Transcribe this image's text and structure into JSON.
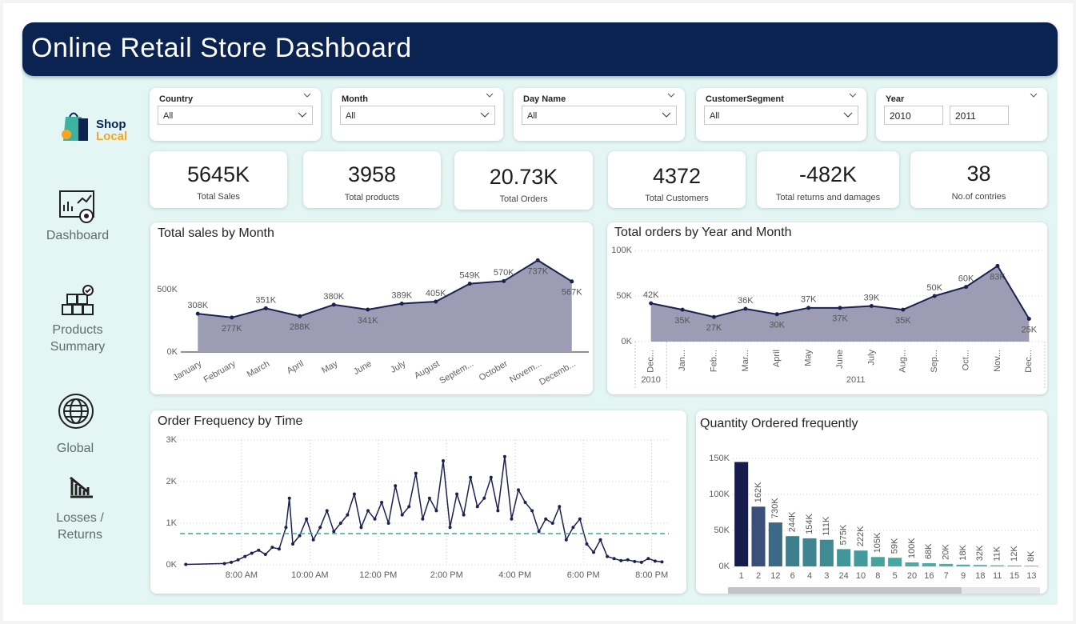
{
  "title": "Online Retail Store Dashboard",
  "logo": {
    "line1": "Shop",
    "line2": "Local"
  },
  "nav": [
    "Dashboard",
    "Products Summary",
    "Global",
    "Losses / Returns"
  ],
  "filters": [
    {
      "label": "Country",
      "value": "All"
    },
    {
      "label": "Month",
      "value": "All"
    },
    {
      "label": "Day Name",
      "value": "All"
    },
    {
      "label": "CustomerSegment",
      "value": "All"
    },
    {
      "label": "Year",
      "from": "2010",
      "to": "2011"
    }
  ],
  "kpis": [
    {
      "value": "5645K",
      "label": "Total Sales"
    },
    {
      "value": "3958",
      "label": "Total products"
    },
    {
      "value": "20.73K",
      "label": "Total Orders"
    },
    {
      "value": "4372",
      "label": "Total Customers"
    },
    {
      "value": "-482K",
      "label": "Total returns and damages"
    },
    {
      "value": "38",
      "label": "No.of contries"
    }
  ],
  "chart_data": [
    {
      "type": "area",
      "title": "Total sales by Month",
      "categories": [
        "January",
        "February",
        "March",
        "April",
        "May",
        "June",
        "July",
        "August",
        "Septem...",
        "October",
        "Novem...",
        "Decemb..."
      ],
      "values": [
        308000,
        277000,
        351000,
        288000,
        380000,
        341000,
        389000,
        405000,
        549000,
        570000,
        737000,
        567000
      ],
      "value_labels": [
        "308K",
        "277K",
        "351K",
        "288K",
        "380K",
        "341K",
        "389K",
        "405K",
        "549K",
        "570K",
        "737K",
        "567K"
      ],
      "color": "#1b2150",
      "fill": "#9c9db4",
      "ylim": [
        0,
        900000
      ],
      "yticks": [
        {
          "value": 0,
          "label": "0K"
        },
        {
          "value": 500000,
          "label": "500K"
        }
      ]
    },
    {
      "type": "area",
      "title": "Total orders by Year and Month",
      "groups": [
        {
          "name": "2010",
          "categories": [
            "Dec..."
          ]
        },
        {
          "name": "2011",
          "categories": [
            "Jan...",
            "Feb...",
            "Mar...",
            "April",
            "May",
            "June",
            "July",
            "Aug...",
            "Sep...",
            "Oct...",
            "Nov...",
            "Dec..."
          ]
        }
      ],
      "values": [
        42000,
        35000,
        27000,
        36000,
        30000,
        37000,
        37000,
        39000,
        35000,
        50000,
        60000,
        83000,
        25000
      ],
      "value_labels": [
        "42K",
        "35K",
        "27K",
        "36K",
        "30K",
        "37K",
        "37K",
        "39K",
        "35K",
        "50K",
        "60K",
        "83K",
        "25K"
      ],
      "color": "#1b2150",
      "fill": "#9c9db4",
      "ylim": [
        0,
        100000
      ],
      "yticks": [
        {
          "value": 0,
          "label": "0K"
        },
        {
          "value": 50000,
          "label": "50K"
        },
        {
          "value": 100000,
          "label": "100K"
        }
      ],
      "grid": true
    },
    {
      "type": "line",
      "title": "Order Frequency by Time",
      "x": [
        6.37,
        7.5,
        7.7,
        7.9,
        8.1,
        8.3,
        8.5,
        8.7,
        8.9,
        9.1,
        9.3,
        9.4,
        9.5,
        9.7,
        9.9,
        10.1,
        10.3,
        10.5,
        10.7,
        10.9,
        11.1,
        11.3,
        11.5,
        11.7,
        11.9,
        12.1,
        12.3,
        12.5,
        12.7,
        12.9,
        13.1,
        13.3,
        13.5,
        13.7,
        13.9,
        14.1,
        14.3,
        14.5,
        14.7,
        14.9,
        15.1,
        15.3,
        15.5,
        15.7,
        15.9,
        16.1,
        16.3,
        16.5,
        16.7,
        16.9,
        17.1,
        17.3,
        17.5,
        17.7,
        17.9,
        18.1,
        18.3,
        18.5,
        18.7,
        18.9,
        19.1,
        19.3,
        19.5,
        19.7,
        19.9,
        20.1,
        20.3
      ],
      "values": [
        10,
        30,
        60,
        120,
        200,
        280,
        350,
        250,
        420,
        380,
        900,
        1600,
        500,
        700,
        1100,
        600,
        900,
        1300,
        800,
        1000,
        1200,
        1700,
        900,
        1300,
        1100,
        1500,
        1000,
        1900,
        1200,
        1400,
        2200,
        1100,
        1600,
        1300,
        2500,
        900,
        1700,
        1200,
        2100,
        1400,
        1600,
        2100,
        1300,
        2600,
        1100,
        1800,
        1500,
        1300,
        800,
        1100,
        1000,
        1400,
        600,
        900,
        1100,
        500,
        300,
        600,
        200,
        150,
        100,
        120,
        80,
        60,
        150,
        90,
        70
      ],
      "color": "#1b2150",
      "reference_line": {
        "value": 750,
        "color": "#3aa89a"
      },
      "xlim": [
        6.2,
        20.5
      ],
      "xticks": [
        {
          "value": 8,
          "label": "8:00 AM"
        },
        {
          "value": 10,
          "label": "10:00 AM"
        },
        {
          "value": 12,
          "label": "12:00 PM"
        },
        {
          "value": 14,
          "label": "2:00 PM"
        },
        {
          "value": 16,
          "label": "4:00 PM"
        },
        {
          "value": 18,
          "label": "6:00 PM"
        },
        {
          "value": 20,
          "label": "8:00 PM"
        }
      ],
      "ylim": [
        0,
        3000
      ],
      "yticks": [
        {
          "value": 0,
          "label": "0K"
        },
        {
          "value": 1000,
          "label": "1K"
        },
        {
          "value": 2000,
          "label": "2K"
        },
        {
          "value": 3000,
          "label": "3K"
        }
      ],
      "grid": true
    },
    {
      "type": "bar",
      "title": "Quantity Ordered frequently",
      "categories": [
        "1",
        "2",
        "12",
        "6",
        "4",
        "3",
        "24",
        "10",
        "8",
        "5",
        "20",
        "16",
        "7",
        "9",
        "18",
        "11",
        "15",
        "13"
      ],
      "values": [
        145000,
        83000,
        61000,
        42000,
        39000,
        37000,
        24000,
        22000,
        13000,
        12000,
        5500,
        4500,
        3500,
        2500,
        2000,
        1500,
        1200,
        1000
      ],
      "colors": [
        "#161c4b",
        "#3a5079",
        "#3c6a86",
        "#3e7f8e",
        "#3f8591",
        "#408a93",
        "#429698",
        "#449a9a",
        "#46a29d",
        "#48a7a0",
        "#4aaba3",
        "#4aaea5",
        "#4bb0a6",
        "#4bb1a7",
        "#4cb2a8",
        "#4cb3a8",
        "#4cb4a9",
        "#4db5a9"
      ],
      "ylim": [
        0,
        150000
      ],
      "yticks": [
        {
          "value": 0,
          "label": "0K"
        },
        {
          "value": 50000,
          "label": "50K"
        },
        {
          "value": 100000,
          "label": "100K"
        },
        {
          "value": 150000,
          "label": "150K"
        }
      ],
      "grid": true,
      "data_labels": {
        "values": [
          null,
          162000,
          730000,
          244000,
          154000,
          111000,
          575000,
          222000,
          105000,
          59000,
          100000,
          68000,
          20000,
          18000,
          32000,
          11000,
          12000,
          8000
        ],
        "value_labels": [
          null,
          "162K",
          "730K",
          "244K",
          "154K",
          "111K",
          "575K",
          "222K",
          "105K",
          "59K",
          "100K",
          "68K",
          "20K",
          "18K",
          "32K",
          "11K",
          "12K",
          "8K"
        ]
      }
    }
  ]
}
